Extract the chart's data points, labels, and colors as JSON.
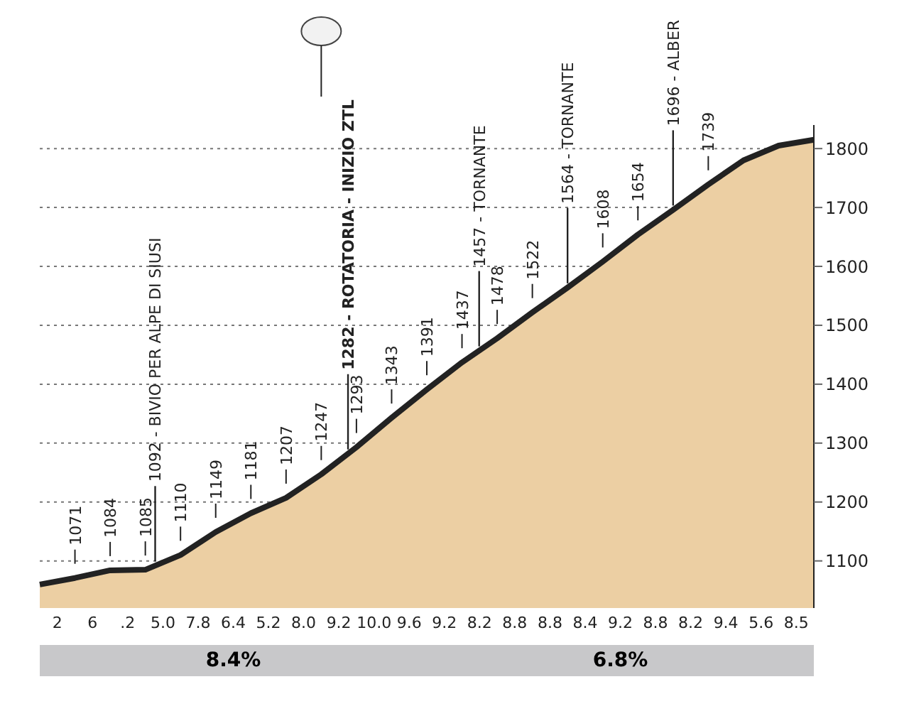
{
  "chart_data": {
    "type": "area",
    "categories": [
      null,
      null,
      null,
      null,
      null,
      null,
      null,
      null,
      null,
      null,
      null,
      null,
      null,
      null,
      null,
      null,
      null,
      null,
      null,
      null,
      null,
      null,
      null
    ],
    "values": [
      1060,
      1071,
      1084,
      1085,
      1110,
      1149,
      1181,
      1207,
      1247,
      1293,
      1343,
      1391,
      1437,
      1478,
      1522,
      1564,
      1608,
      1654,
      1696,
      1739,
      1780,
      1805,
      1815
    ],
    "value_labels": [
      null,
      "1071",
      "1084",
      "1085",
      "1110",
      "1149",
      "1181",
      "1207",
      "1247",
      "1293",
      "1343",
      "1391",
      "1437",
      "1478",
      "1522",
      null,
      "1608",
      "1654",
      null,
      "1739",
      null,
      null,
      null
    ],
    "color": "#eccfa3",
    "ylim": [
      1020,
      1840
    ],
    "yticks": [
      1100,
      1200,
      1300,
      1400,
      1500,
      1600,
      1700,
      1800
    ],
    "grid": "y",
    "annotations": [
      {
        "text": "1092 - BIVIO PER ALPE DI SIUSI",
        "y": 1092
      },
      {
        "text": "1282 - ROTATORIA - INIZIO ZTL",
        "y": 1282
      },
      {
        "text": "1457 - TORNANTE",
        "y": 1457
      },
      {
        "text": "1564 - TORNANTE",
        "y": 1564
      },
      {
        "text": "1696 - ALBER",
        "y": 1696
      },
      "2",
      "6",
      ".2",
      "5.0",
      "7.8",
      "6.4",
      "5.2",
      "8.0",
      "9.2",
      "10.0",
      "9.6",
      "9.2",
      "8.2",
      "8.8",
      "8.8",
      "8.4",
      "9.2",
      "8.8",
      "8.2",
      "9.4",
      "5.6",
      "8.5",
      "8.4%",
      "6.8%"
    ]
  }
}
